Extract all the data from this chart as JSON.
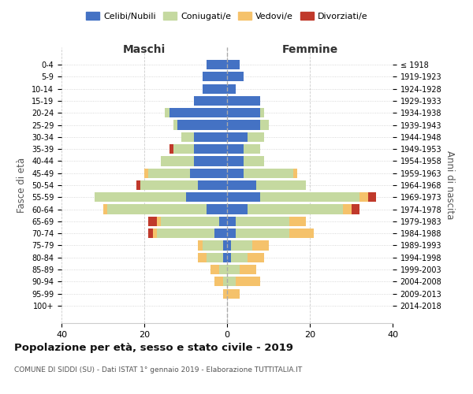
{
  "age_groups": [
    "0-4",
    "5-9",
    "10-14",
    "15-19",
    "20-24",
    "25-29",
    "30-34",
    "35-39",
    "40-44",
    "45-49",
    "50-54",
    "55-59",
    "60-64",
    "65-69",
    "70-74",
    "75-79",
    "80-84",
    "85-89",
    "90-94",
    "95-99",
    "100+"
  ],
  "birth_years": [
    "2014-2018",
    "2009-2013",
    "2004-2008",
    "1999-2003",
    "1994-1998",
    "1989-1993",
    "1984-1988",
    "1979-1983",
    "1974-1978",
    "1969-1973",
    "1964-1968",
    "1959-1963",
    "1954-1958",
    "1949-1953",
    "1944-1948",
    "1939-1943",
    "1934-1938",
    "1929-1933",
    "1924-1928",
    "1919-1923",
    "≤ 1918"
  ],
  "male_celibi": [
    5,
    6,
    6,
    8,
    14,
    12,
    8,
    8,
    8,
    9,
    7,
    10,
    5,
    2,
    3,
    1,
    1,
    0,
    0,
    0,
    0
  ],
  "male_coniugati": [
    0,
    0,
    0,
    0,
    1,
    1,
    3,
    5,
    8,
    10,
    14,
    22,
    24,
    14,
    14,
    5,
    4,
    2,
    1,
    0,
    0
  ],
  "male_vedovi": [
    0,
    0,
    0,
    0,
    0,
    0,
    0,
    0,
    0,
    1,
    0,
    0,
    1,
    1,
    1,
    1,
    2,
    2,
    2,
    1,
    0
  ],
  "male_divorziati": [
    0,
    0,
    0,
    0,
    0,
    0,
    0,
    1,
    0,
    0,
    1,
    0,
    0,
    2,
    1,
    0,
    0,
    0,
    0,
    0,
    0
  ],
  "female_celibi": [
    3,
    4,
    2,
    8,
    8,
    8,
    5,
    4,
    4,
    4,
    7,
    8,
    5,
    2,
    2,
    1,
    1,
    0,
    0,
    0,
    0
  ],
  "female_coniugati": [
    0,
    0,
    0,
    0,
    1,
    2,
    4,
    4,
    5,
    12,
    12,
    24,
    23,
    13,
    13,
    5,
    4,
    3,
    2,
    0,
    0
  ],
  "female_vedovi": [
    0,
    0,
    0,
    0,
    0,
    0,
    0,
    0,
    0,
    1,
    0,
    2,
    2,
    4,
    6,
    4,
    4,
    4,
    6,
    3,
    0
  ],
  "female_divorziati": [
    0,
    0,
    0,
    0,
    0,
    0,
    0,
    0,
    0,
    0,
    0,
    2,
    2,
    0,
    0,
    0,
    0,
    0,
    0,
    0,
    0
  ],
  "colors": {
    "celibi": "#4472c4",
    "coniugati": "#c5d9a0",
    "vedovi": "#f5c26b",
    "divorziati": "#c0392b"
  },
  "title": "Popolazione per età, sesso e stato civile - 2019",
  "subtitle": "COMUNE DI SIDDI (SU) - Dati ISTAT 1° gennaio 2019 - Elaborazione TUTTITALIA.IT",
  "xlabel_left": "Maschi",
  "xlabel_right": "Femmine",
  "ylabel_left": "Fasce di età",
  "ylabel_right": "Anni di nascita",
  "xlim": 40,
  "background_color": "#ffffff",
  "grid_color": "#cccccc"
}
